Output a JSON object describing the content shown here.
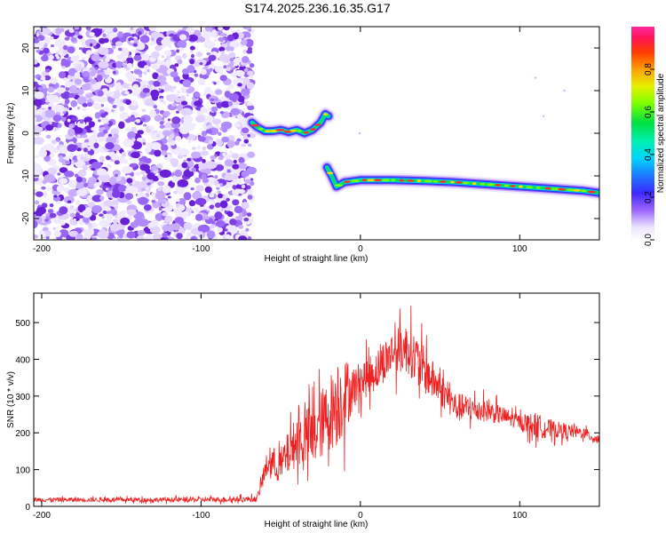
{
  "title": "S174.2025.236.16.35.G17",
  "chart_data": [
    {
      "type": "heatmap",
      "title": "S174.2025.236.16.35.G17",
      "xlabel": "Height of straight line (km)",
      "ylabel": "Frequency (Hz)",
      "xlim": [
        -205,
        150
      ],
      "ylim": [
        -25,
        25
      ],
      "xticks": [
        -200,
        -100,
        0,
        100
      ],
      "yticks": [
        -20,
        -10,
        0,
        10,
        20
      ],
      "colorbar": {
        "label": "Normalized spectral amplitude",
        "range": [
          0,
          1
        ],
        "ticks": [
          0.0,
          0.2,
          0.4,
          0.6,
          0.8
        ]
      },
      "noise_region_x": [
        -205,
        -68
      ],
      "tracks": [
        {
          "name": "upper-track",
          "x": [
            -68,
            -65,
            -60,
            -55,
            -50,
            -45,
            -40,
            -35,
            -30,
            -25,
            -22,
            -20
          ],
          "y": [
            2.5,
            1.5,
            0.5,
            0.5,
            0.8,
            0.3,
            0.8,
            0.0,
            0.8,
            2.5,
            4.5,
            4.0
          ]
        },
        {
          "name": "lower-track",
          "x": [
            -21,
            -18,
            -15,
            -10,
            0,
            20,
            40,
            60,
            80,
            100,
            120,
            140,
            150
          ],
          "y": [
            -8,
            -10,
            -12.5,
            -11.5,
            -11.0,
            -11.0,
            -11.2,
            -11.5,
            -12.0,
            -12.5,
            -13.0,
            -13.5,
            -14.0
          ]
        }
      ]
    },
    {
      "type": "line",
      "xlabel": "Height of straight line (km)",
      "ylabel": "SNR (10 * v/v)",
      "xlim": [
        -205,
        150
      ],
      "ylim": [
        0,
        580
      ],
      "xticks": [
        -200,
        -100,
        0,
        100
      ],
      "yticks": [
        0,
        100,
        200,
        300,
        400,
        500
      ],
      "series": [
        {
          "name": "SNR",
          "color": "#ee2222",
          "envelope_x": [
            -205,
            -150,
            -100,
            -65,
            -58,
            -50,
            -40,
            -30,
            -20,
            -15,
            -10,
            -5,
            0,
            10,
            20,
            30,
            40,
            50,
            60,
            80,
            100,
            110,
            120,
            140,
            150
          ],
          "envelope_mean": [
            18,
            18,
            18,
            20,
            120,
            110,
            180,
            190,
            250,
            280,
            300,
            320,
            340,
            370,
            420,
            430,
            370,
            320,
            270,
            260,
            230,
            220,
            210,
            200,
            180
          ],
          "envelope_amplitude": [
            6,
            6,
            7,
            8,
            40,
            50,
            70,
            90,
            100,
            120,
            110,
            60,
            55,
            55,
            60,
            70,
            65,
            45,
            40,
            30,
            20,
            35,
            25,
            15,
            15
          ]
        }
      ]
    }
  ]
}
